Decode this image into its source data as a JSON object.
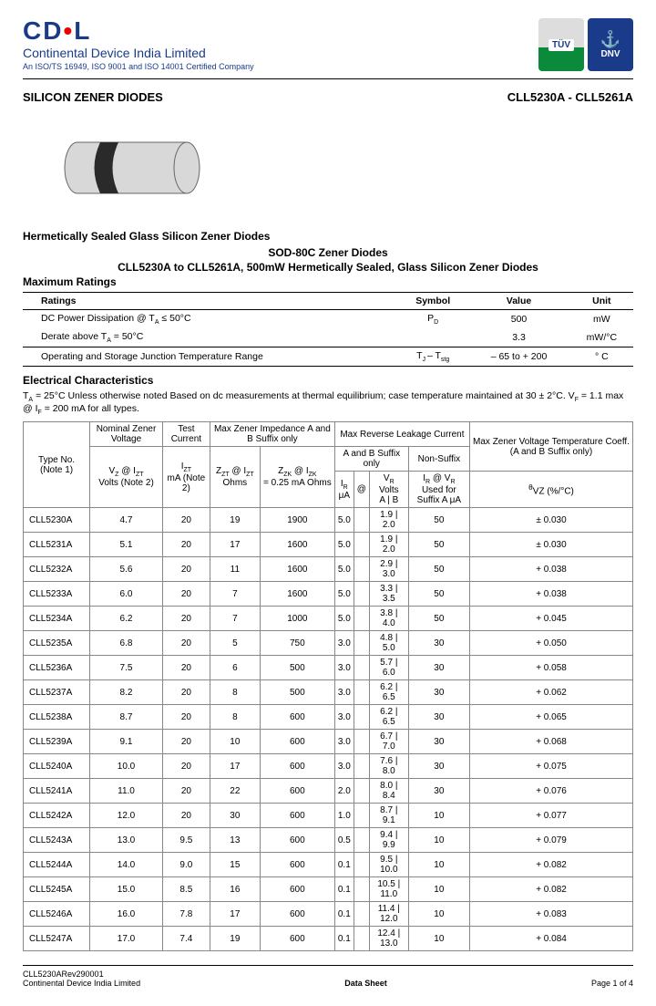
{
  "header": {
    "logo_main": "CD",
    "logo_dot": "•",
    "logo_end": "L",
    "company": "Continental Device India Limited",
    "cert": "An ISO/TS 16949, ISO 9001 and ISO 14001 Certified Company",
    "badge_tuv": "TÜV",
    "badge_dnv": "DNV"
  },
  "title_left": "SILICON ZENER DIODES",
  "title_right": "CLL5230A - CLL5261A",
  "diode": {
    "body_color": "#d8d8d8",
    "band_color": "#2a2a2a",
    "stroke": "#666666"
  },
  "subtitle": "Hermetically Sealed Glass Silicon Zener Diodes",
  "sod_title": "SOD-80C Zener Diodes",
  "sod_sub": "CLL5230A to CLL5261A, 500mW Hermetically Sealed, Glass Silicon Zener Diodes",
  "max_ratings_label": "Maximum Ratings",
  "ratings": {
    "headers": [
      "Ratings",
      "Symbol",
      "Value",
      "Unit"
    ],
    "rows": [
      {
        "rating": "DC Power Dissipation @ T",
        "rating_sub": "A",
        "rating_tail": " ≤ 50°C",
        "symbol": "P",
        "symbol_sub": "D",
        "value": "500",
        "unit": "mW"
      },
      {
        "rating": "Derate above T",
        "rating_sub": "A",
        "rating_tail": " = 50°C",
        "symbol": "",
        "symbol_sub": "",
        "value": "3.3",
        "unit": "mW/°C"
      },
      {
        "rating": "Operating and Storage Junction Temperature Range",
        "rating_sub": "",
        "rating_tail": "",
        "symbol": "T",
        "symbol_sub": "J ",
        "symbol2": "– T",
        "symbol2_sub": "stg",
        "value": "– 65 to + 200",
        "unit": "° C"
      }
    ]
  },
  "ec_label": "Electrical Characteristics",
  "ec_note_1": "T",
  "ec_note_1sub": "A",
  "ec_note_2": " = 25°C Unless otherwise noted Based on dc measurements at thermal equilibrium; case temperature maintained at 30 ± 2°C. V",
  "ec_note_2sub": "F",
  "ec_note_3": " = 1.1 max @ I",
  "ec_note_3sub": "F",
  "ec_note_4": " = 200 mA for all types.",
  "table": {
    "h_type": "Type No. (Note 1)",
    "h_nominal": "Nominal Zener Voltage",
    "h_vz": "V",
    "h_vz_sub": "Z",
    "h_vz_at": " @ I",
    "h_vz_at_sub": "ZT",
    "h_volts": "Volts (Note 2)",
    "h_test": "Test Current",
    "h_izt": "I",
    "h_izt_sub": "ZT",
    "h_ma": "mA (Note 2)",
    "h_maximp": "Max Zener Impedance A and B Suffix only",
    "h_zzt": "Z",
    "h_zzt_sub": "ZT",
    "h_zzt_at": " @ I",
    "h_zzt_at_sub": "ZT",
    "h_ohms": "Ohms",
    "h_zzk": "Z",
    "h_zzk_sub": "ZK",
    "h_zzk_at": " @ I",
    "h_zzk_at_sub": "ZK",
    "h_zzk_val": "= 0.25 mA Ohms",
    "h_maxrev": "Max Reverse Leakage Current",
    "h_absuffix": "A and B Suffix only",
    "h_nonsuffix": "Non-Suffix",
    "h_ir": "I",
    "h_ir_sub": "R",
    "h_ua": "μA",
    "h_at": "@",
    "h_vr": "V",
    "h_vr_sub": "R",
    "h_vr_volts": "Volts",
    "h_a": "A",
    "h_b": "B",
    "h_irvr": "I",
    "h_irvr_sub": "R",
    "h_irvr_at": " @ V",
    "h_irvr_at_sub": "R",
    "h_used": "Used for Suffix A μA",
    "h_maxzener": "Max Zener Voltage Temperature Coeff. (A and B Suffix only)",
    "h_vzcoeff": "θ",
    "h_vzcoeff2": "VZ (%/°C)",
    "rows": [
      [
        "CLL5230A",
        "4.7",
        "20",
        "19",
        "1900",
        "5.0",
        "1.9",
        "2.0",
        "50",
        "± 0.030"
      ],
      [
        "CLL5231A",
        "5.1",
        "20",
        "17",
        "1600",
        "5.0",
        "1.9",
        "2.0",
        "50",
        "± 0.030"
      ],
      [
        "CLL5232A",
        "5.6",
        "20",
        "11",
        "1600",
        "5.0",
        "2.9",
        "3.0",
        "50",
        "+ 0.038"
      ],
      [
        "CLL5233A",
        "6.0",
        "20",
        "7",
        "1600",
        "5.0",
        "3.3",
        "3.5",
        "50",
        "+ 0.038"
      ],
      [
        "CLL5234A",
        "6.2",
        "20",
        "7",
        "1000",
        "5.0",
        "3.8",
        "4.0",
        "50",
        "+ 0.045"
      ],
      [
        "CLL5235A",
        "6.8",
        "20",
        "5",
        "750",
        "3.0",
        "4.8",
        "5.0",
        "30",
        "+ 0.050"
      ],
      [
        "CLL5236A",
        "7.5",
        "20",
        "6",
        "500",
        "3.0",
        "5.7",
        "6.0",
        "30",
        "+ 0.058"
      ],
      [
        "CLL5237A",
        "8.2",
        "20",
        "8",
        "500",
        "3.0",
        "6.2",
        "6.5",
        "30",
        "+ 0.062"
      ],
      [
        "CLL5238A",
        "8.7",
        "20",
        "8",
        "600",
        "3.0",
        "6.2",
        "6.5",
        "30",
        "+ 0.065"
      ],
      [
        "CLL5239A",
        "9.1",
        "20",
        "10",
        "600",
        "3.0",
        "6.7",
        "7.0",
        "30",
        "+ 0.068"
      ],
      [
        "CLL5240A",
        "10.0",
        "20",
        "17",
        "600",
        "3.0",
        "7.6",
        "8.0",
        "30",
        "+ 0.075"
      ],
      [
        "CLL5241A",
        "11.0",
        "20",
        "22",
        "600",
        "2.0",
        "8.0",
        "8.4",
        "30",
        "+ 0.076"
      ],
      [
        "CLL5242A",
        "12.0",
        "20",
        "30",
        "600",
        "1.0",
        "8.7",
        "9.1",
        "10",
        "+ 0.077"
      ],
      [
        "CLL5243A",
        "13.0",
        "9.5",
        "13",
        "600",
        "0.5",
        "9.4",
        "9.9",
        "10",
        "+ 0.079"
      ],
      [
        "CLL5244A",
        "14.0",
        "9.0",
        "15",
        "600",
        "0.1",
        "9.5",
        "10.0",
        "10",
        "+ 0.082"
      ],
      [
        "CLL5245A",
        "15.0",
        "8.5",
        "16",
        "600",
        "0.1",
        "10.5",
        "11.0",
        "10",
        "+ 0.082"
      ],
      [
        "CLL5246A",
        "16.0",
        "7.8",
        "17",
        "600",
        "0.1",
        "11.4",
        "12.0",
        "10",
        "+ 0.083"
      ],
      [
        "CLL5247A",
        "17.0",
        "7.4",
        "19",
        "600",
        "0.1",
        "12.4",
        "13.0",
        "10",
        "+ 0.084"
      ]
    ]
  },
  "footer": {
    "left1": "CLL5230ARev290001",
    "left2": "Continental Device India Limited",
    "center": "Data Sheet",
    "right": "Page 1 of 4"
  }
}
